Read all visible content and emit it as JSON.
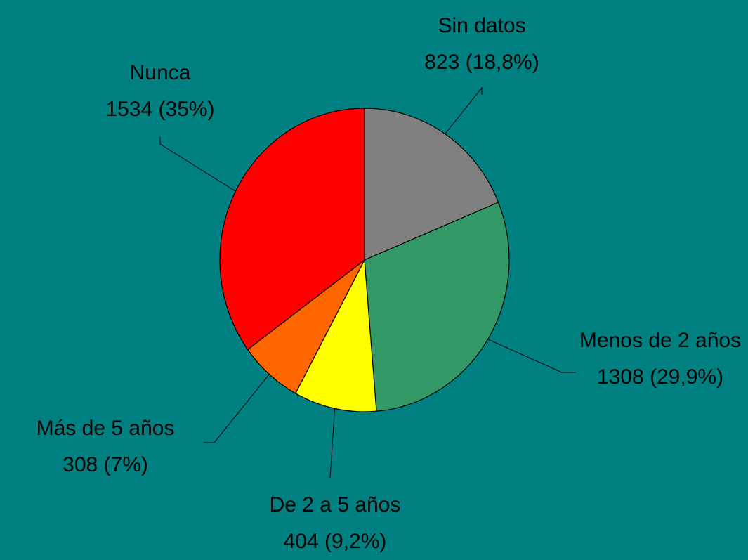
{
  "chart_data": {
    "type": "pie",
    "categories": [
      "Sin datos",
      "Menos de 2 años",
      "De 2 a 5 años",
      "Más de 5 años",
      "Nunca"
    ],
    "values": [
      823,
      1308,
      404,
      308,
      1534
    ],
    "value_labels": [
      "823 (18,8%)",
      "1308 (29,9%)",
      "404 (9,2%)",
      "308 (7%)",
      "1534 (35%)"
    ],
    "colors": [
      "#808080",
      "#339966",
      "#ffff00",
      "#ff6600",
      "#ff0000"
    ]
  }
}
